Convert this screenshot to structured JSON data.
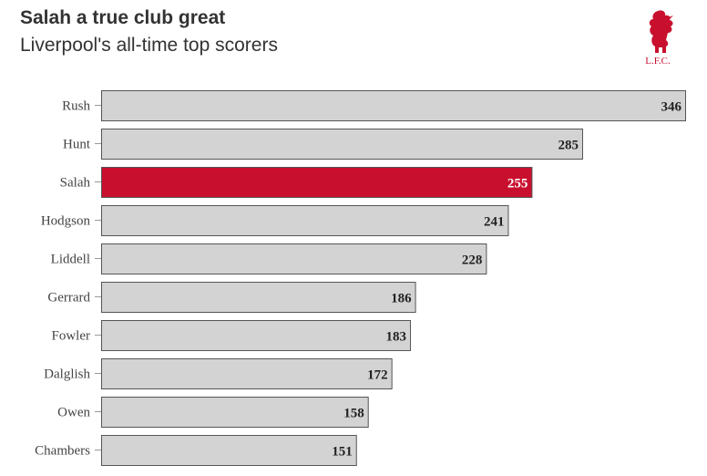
{
  "chart_data": {
    "type": "bar",
    "orientation": "horizontal",
    "title": "Salah a true club great",
    "subtitle": "Liverpool's all-time top scorers",
    "categories": [
      "Rush",
      "Hunt",
      "Salah",
      "Hodgson",
      "Liddell",
      "Gerrard",
      "Fowler",
      "Dalglish",
      "Owen",
      "Chambers"
    ],
    "values": [
      346,
      285,
      255,
      241,
      228,
      186,
      183,
      172,
      158,
      151
    ],
    "value_labels": [
      "346",
      "285",
      "255",
      "241",
      "228",
      "186",
      "183",
      "172",
      "158",
      "151"
    ],
    "highlight": "Salah",
    "xlim": [
      0,
      346
    ],
    "grid": false,
    "colors": {
      "bar": "#d3d3d3",
      "highlight": "#c8102e",
      "border": "#555555",
      "label": "#222222",
      "highlight_label": "#ffffff"
    }
  },
  "logo": {
    "icon": "liverbird-icon",
    "text": "L.F.C."
  }
}
